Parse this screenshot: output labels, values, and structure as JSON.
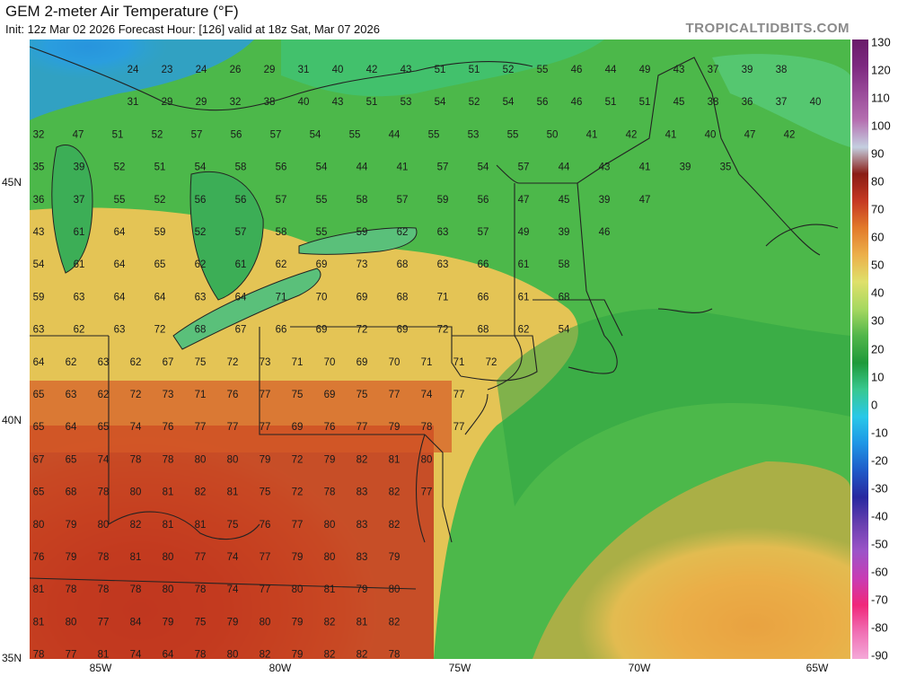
{
  "header": {
    "title": "GEM 2-meter Air Temperature (°F)",
    "subtitle": "Init: 12z Mar 02 2026   Forecast Hour: [126]   valid at 18z Sat, Mar 07 2026",
    "brand": "TROPICALTIDBITS.COM"
  },
  "colorbar": {
    "labels": [
      "130",
      "120",
      "110",
      "100",
      "90",
      "80",
      "70",
      "60",
      "50",
      "40",
      "30",
      "20",
      "10",
      "0",
      "-10",
      "-20",
      "-30",
      "-40",
      "-50",
      "-60",
      "-70",
      "-80",
      "-90"
    ],
    "colors": [
      "#6a1b6a",
      "#7d2a80",
      "#9a4b9a",
      "#b56fb0",
      "#c4cfe0",
      "#8a1d14",
      "#c63a22",
      "#e27a2a",
      "#ecb04a",
      "#dfe06a",
      "#a6d860",
      "#52b64a",
      "#1f9a3a",
      "#38c890",
      "#28c8e8",
      "#1e96e6",
      "#1e5ac8",
      "#2828a0",
      "#6a40b0",
      "#9c54c8",
      "#c83cb4",
      "#f0287a",
      "#f070b4",
      "#f4a8d8"
    ]
  },
  "axes": {
    "lat_labels": [
      "45N",
      "40N",
      "35N"
    ],
    "lon_labels": [
      "85W",
      "80W",
      "75W",
      "70W",
      "65W"
    ]
  },
  "temperatures": [
    [
      "24",
      "23",
      "24",
      "26",
      "29",
      "31",
      "40",
      "42",
      "43",
      "51",
      "51",
      "52",
      "55",
      "46",
      "44",
      "49",
      "43",
      "37",
      "39",
      "38"
    ],
    [
      "31",
      "29",
      "29",
      "32",
      "38",
      "40",
      "43",
      "51",
      "53",
      "54",
      "52",
      "54",
      "56",
      "46",
      "51",
      "51",
      "45",
      "38",
      "36",
      "37",
      "40"
    ],
    [
      "32",
      "47",
      "51",
      "52",
      "57",
      "56",
      "57",
      "54",
      "55",
      "44",
      "55",
      "53",
      "55",
      "50",
      "41",
      "42",
      "41",
      "40",
      "47",
      "42"
    ],
    [
      "35",
      "39",
      "52",
      "51",
      "54",
      "58",
      "56",
      "54",
      "44",
      "41",
      "57",
      "54",
      "57",
      "44",
      "43",
      "41",
      "39",
      "35"
    ],
    [
      "36",
      "37",
      "55",
      "52",
      "56",
      "56",
      "57",
      "55",
      "58",
      "57",
      "59",
      "56",
      "47",
      "45",
      "39",
      "47"
    ],
    [
      "43",
      "61",
      "64",
      "59",
      "52",
      "57",
      "58",
      "55",
      "59",
      "62",
      "63",
      "57",
      "49",
      "39",
      "46"
    ],
    [
      "54",
      "61",
      "64",
      "65",
      "62",
      "61",
      "62",
      "69",
      "73",
      "68",
      "63",
      "66",
      "61",
      "58"
    ],
    [
      "59",
      "63",
      "64",
      "64",
      "63",
      "64",
      "71",
      "70",
      "69",
      "68",
      "71",
      "66",
      "61",
      "68"
    ],
    [
      "63",
      "62",
      "63",
      "72",
      "68",
      "67",
      "66",
      "69",
      "72",
      "69",
      "72",
      "68",
      "62",
      "54"
    ],
    [
      "64",
      "62",
      "63",
      "62",
      "67",
      "75",
      "72",
      "73",
      "71",
      "70",
      "69",
      "70",
      "71",
      "71",
      "72"
    ],
    [
      "65",
      "63",
      "62",
      "72",
      "73",
      "71",
      "76",
      "77",
      "75",
      "69",
      "75",
      "77",
      "74",
      "77"
    ],
    [
      "65",
      "64",
      "65",
      "74",
      "76",
      "77",
      "77",
      "77",
      "69",
      "76",
      "77",
      "79",
      "78",
      "77"
    ],
    [
      "67",
      "65",
      "74",
      "78",
      "78",
      "80",
      "80",
      "79",
      "72",
      "79",
      "82",
      "81",
      "80"
    ],
    [
      "65",
      "68",
      "78",
      "80",
      "81",
      "82",
      "81",
      "75",
      "72",
      "78",
      "83",
      "82",
      "77"
    ],
    [
      "80",
      "79",
      "80",
      "82",
      "81",
      "81",
      "75",
      "76",
      "77",
      "80",
      "83",
      "82"
    ],
    [
      "76",
      "79",
      "78",
      "81",
      "80",
      "77",
      "74",
      "77",
      "79",
      "80",
      "83",
      "79"
    ],
    [
      "81",
      "78",
      "78",
      "78",
      "80",
      "78",
      "74",
      "77",
      "80",
      "81",
      "79",
      "80"
    ],
    [
      "81",
      "80",
      "77",
      "84",
      "79",
      "75",
      "79",
      "80",
      "79",
      "82",
      "81",
      "82"
    ],
    [
      "78",
      "77",
      "81",
      "74",
      "64",
      "78",
      "80",
      "82",
      "79",
      "82",
      "82",
      "78"
    ]
  ]
}
